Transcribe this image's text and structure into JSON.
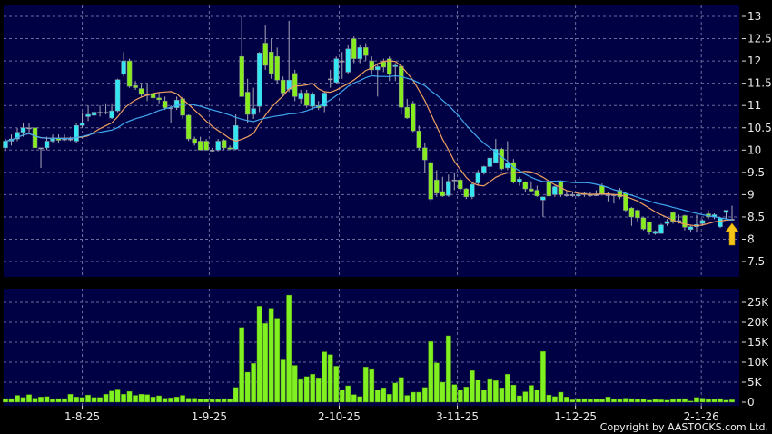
{
  "chart_data": [
    {
      "type": "candlestick",
      "panel": "price",
      "ylim": [
        7.2,
        13.25
      ],
      "y_ticks": [
        7.5,
        8,
        8.5,
        9,
        9.5,
        10,
        10.5,
        11,
        11.5,
        12,
        12.5,
        13
      ],
      "grid": true,
      "colors": {
        "up": "#33e6f2",
        "down": "#86ec1e",
        "wick": "#a8a8b8",
        "ma_short": "#f0a060",
        "ma_long": "#40a8f0",
        "background": "#000044",
        "grid": "#6c6c9c"
      },
      "moving_averages": [
        {
          "period": 10,
          "color": "#f0a060"
        },
        {
          "period": 20,
          "color": "#40a8f0"
        }
      ],
      "marker": {
        "icon": "up-arrow-icon",
        "candle_index": 123,
        "color": "#f5c518"
      },
      "candles": [
        [
          10.05,
          10.25,
          9.98,
          10.2
        ],
        [
          10.2,
          10.35,
          10.1,
          10.25
        ],
        [
          10.25,
          10.5,
          10.2,
          10.4
        ],
        [
          10.4,
          10.6,
          10.3,
          10.5
        ],
        [
          10.5,
          10.6,
          10.35,
          10.5
        ],
        [
          10.5,
          10.5,
          9.5,
          10.05
        ],
        [
          10.05,
          10.05,
          9.6,
          10.05
        ],
        [
          10.05,
          10.3,
          10.0,
          10.2
        ],
        [
          10.2,
          10.35,
          10.15,
          10.25
        ],
        [
          10.27,
          10.35,
          10.15,
          10.22
        ],
        [
          10.25,
          10.35,
          10.2,
          10.25
        ],
        [
          10.25,
          10.3,
          10.2,
          10.25
        ],
        [
          10.2,
          10.6,
          10.15,
          10.55
        ],
        [
          10.55,
          10.85,
          10.5,
          10.6
        ],
        [
          10.75,
          11.0,
          10.65,
          10.8
        ],
        [
          10.78,
          11.0,
          10.7,
          10.85
        ],
        [
          10.85,
          11.0,
          10.75,
          10.85
        ],
        [
          10.85,
          11.05,
          10.8,
          10.85
        ],
        [
          10.72,
          11.05,
          10.7,
          10.88
        ],
        [
          10.88,
          11.6,
          10.85,
          11.58
        ],
        [
          11.7,
          12.2,
          11.65,
          12.0
        ],
        [
          12.0,
          12.05,
          11.4,
          11.43
        ],
        [
          11.45,
          11.55,
          11.35,
          11.4
        ],
        [
          11.38,
          11.5,
          11.2,
          11.25
        ],
        [
          11.25,
          11.5,
          11.1,
          11.25
        ],
        [
          11.27,
          11.5,
          11.0,
          11.17
        ],
        [
          11.17,
          11.3,
          11.05,
          11.13
        ],
        [
          11.1,
          11.2,
          10.9,
          10.95
        ],
        [
          10.95,
          11.0,
          10.6,
          10.95
        ],
        [
          10.95,
          11.2,
          10.9,
          11.12
        ],
        [
          11.15,
          11.2,
          10.7,
          10.78
        ],
        [
          10.78,
          10.8,
          10.2,
          10.25
        ],
        [
          10.25,
          10.3,
          10.1,
          10.15
        ],
        [
          10.2,
          10.3,
          10.0,
          10.0
        ],
        [
          10.2,
          10.25,
          10.0,
          10.0
        ],
        [
          10.0,
          10.05,
          9.97,
          10.0
        ],
        [
          10.0,
          10.25,
          9.97,
          10.2
        ],
        [
          10.22,
          10.25,
          10.0,
          10.05
        ],
        [
          10.05,
          10.1,
          10.0,
          10.02
        ],
        [
          10.02,
          10.8,
          10.0,
          10.55
        ],
        [
          12.1,
          13.0,
          11.2,
          11.2
        ],
        [
          11.3,
          11.6,
          10.6,
          10.8
        ],
        [
          10.8,
          11.4,
          10.7,
          10.93
        ],
        [
          10.98,
          12.2,
          10.85,
          12.18
        ],
        [
          12.4,
          12.8,
          11.8,
          11.9
        ],
        [
          12.2,
          12.5,
          11.6,
          11.72
        ],
        [
          12.1,
          12.3,
          11.5,
          11.57
        ],
        [
          11.57,
          11.65,
          11.2,
          11.28
        ],
        [
          11.36,
          12.9,
          11.3,
          11.57
        ],
        [
          11.72,
          11.8,
          11.1,
          11.2
        ],
        [
          11.15,
          11.35,
          11.05,
          11.28
        ],
        [
          11.28,
          11.35,
          10.95,
          11.0
        ],
        [
          10.98,
          11.3,
          10.9,
          11.25
        ],
        [
          11.0,
          11.1,
          10.9,
          10.95
        ],
        [
          10.98,
          11.3,
          10.85,
          11.28
        ],
        [
          11.6,
          11.8,
          11.4,
          11.6
        ],
        [
          11.52,
          12.1,
          11.5,
          12.05
        ],
        [
          12.0,
          12.2,
          11.6,
          12.0
        ],
        [
          11.75,
          12.35,
          11.7,
          12.27
        ],
        [
          12.5,
          12.55,
          11.95,
          12.05
        ],
        [
          12.05,
          12.35,
          11.95,
          12.3
        ],
        [
          12.3,
          12.4,
          12.0,
          12.12
        ],
        [
          12.0,
          12.1,
          11.7,
          11.8
        ],
        [
          11.8,
          11.95,
          11.2,
          11.87
        ],
        [
          11.98,
          12.05,
          11.75,
          11.86
        ],
        [
          12.05,
          12.1,
          11.55,
          11.7
        ],
        [
          11.87,
          11.95,
          11.55,
          11.9
        ],
        [
          11.88,
          11.9,
          10.8,
          10.96
        ],
        [
          10.96,
          11.15,
          10.7,
          10.72
        ],
        [
          11.05,
          11.1,
          10.4,
          10.43
        ],
        [
          10.43,
          10.55,
          10.0,
          10.05
        ],
        [
          10.05,
          10.15,
          9.5,
          9.78
        ],
        [
          9.72,
          9.75,
          8.85,
          8.9
        ],
        [
          9.33,
          9.55,
          8.95,
          9.03
        ],
        [
          9.07,
          9.4,
          8.95,
          8.97
        ],
        [
          8.98,
          9.45,
          8.95,
          9.3
        ],
        [
          9.33,
          9.5,
          9.1,
          9.33
        ],
        [
          9.33,
          9.38,
          9.05,
          9.13
        ],
        [
          9.13,
          9.15,
          8.9,
          8.95
        ],
        [
          8.95,
          9.25,
          8.9,
          9.23
        ],
        [
          9.26,
          9.55,
          9.2,
          9.5
        ],
        [
          9.5,
          9.65,
          9.45,
          9.63
        ],
        [
          9.63,
          9.85,
          9.55,
          9.82
        ],
        [
          9.72,
          10.25,
          9.7,
          10.02
        ],
        [
          10.02,
          10.05,
          9.55,
          9.58
        ],
        [
          9.6,
          10.2,
          9.55,
          9.7
        ],
        [
          9.72,
          9.8,
          9.25,
          9.28
        ],
        [
          9.28,
          9.4,
          9.2,
          9.35
        ],
        [
          9.28,
          9.3,
          9.05,
          9.13
        ],
        [
          9.13,
          9.3,
          9.05,
          9.08
        ],
        [
          9.1,
          9.2,
          8.95,
          8.97
        ],
        [
          8.88,
          8.95,
          8.5,
          8.95
        ],
        [
          9.28,
          9.3,
          8.95,
          8.97
        ],
        [
          9.0,
          9.2,
          8.95,
          9.18
        ],
        [
          9.3,
          9.32,
          8.95,
          9.0
        ],
        [
          9.0,
          9.1,
          8.95,
          9.0
        ],
        [
          9.0,
          9.05,
          8.95,
          9.0
        ],
        [
          8.97,
          9.02,
          8.95,
          9.0
        ],
        [
          9.03,
          9.05,
          8.95,
          9.0
        ],
        [
          9.0,
          9.05,
          8.95,
          9.0
        ],
        [
          9.0,
          9.1,
          8.97,
          9.0
        ],
        [
          9.2,
          9.25,
          8.98,
          9.0
        ],
        [
          9.0,
          9.05,
          8.85,
          9.0
        ],
        [
          9.0,
          9.02,
          8.8,
          9.0
        ],
        [
          9.1,
          9.15,
          8.9,
          8.95
        ],
        [
          9.03,
          9.05,
          8.6,
          8.65
        ],
        [
          8.7,
          8.72,
          8.3,
          8.5
        ],
        [
          8.65,
          8.67,
          8.4,
          8.48
        ],
        [
          8.48,
          8.5,
          8.2,
          8.23
        ],
        [
          8.38,
          8.4,
          8.1,
          8.17
        ],
        [
          8.13,
          8.2,
          8.1,
          8.18
        ],
        [
          8.13,
          8.35,
          8.12,
          8.32
        ],
        [
          8.35,
          8.45,
          8.3,
          8.4
        ],
        [
          8.6,
          8.62,
          8.35,
          8.4
        ],
        [
          8.42,
          8.55,
          8.35,
          8.42
        ],
        [
          8.53,
          8.55,
          8.2,
          8.27
        ],
        [
          8.22,
          8.3,
          8.15,
          8.28
        ],
        [
          8.28,
          8.55,
          8.15,
          8.33
        ],
        [
          8.35,
          8.45,
          8.3,
          8.42
        ],
        [
          8.57,
          8.65,
          8.45,
          8.5
        ],
        [
          8.5,
          8.58,
          8.45,
          8.55
        ],
        [
          8.28,
          8.5,
          8.25,
          8.48
        ],
        [
          8.6,
          8.65,
          8.45,
          8.65
        ],
        [
          8.45,
          8.75,
          8.42,
          8.45
        ]
      ]
    },
    {
      "type": "bar",
      "panel": "volume",
      "ylim": [
        0,
        27500
      ],
      "y_ticks": [
        {
          "value": 0,
          "label": "0"
        },
        {
          "value": 5000,
          "label": "5K"
        },
        {
          "value": 10000,
          "label": "10K"
        },
        {
          "value": 15000,
          "label": "15K"
        },
        {
          "value": 20000,
          "label": "20K"
        },
        {
          "value": 25000,
          "label": "25K"
        }
      ],
      "grid": true,
      "bar_color": "#80f020",
      "values": [
        900,
        900,
        1700,
        1200,
        1900,
        1000,
        1300,
        1400,
        700,
        900,
        900,
        2000,
        1300,
        1200,
        1800,
        1200,
        1200,
        2000,
        2800,
        3300,
        2000,
        2700,
        1700,
        2000,
        1900,
        1300,
        1600,
        1000,
        1100,
        1300,
        1700,
        1000,
        1000,
        800,
        800,
        700,
        700,
        900,
        800,
        3700,
        18700,
        7500,
        9700,
        24000,
        19700,
        23500,
        21000,
        10800,
        26800,
        9200,
        5900,
        6400,
        7000,
        6100,
        12600,
        11900,
        9000,
        3000,
        4100,
        1900,
        1400,
        8800,
        8400,
        3000,
        3600,
        2000,
        4800,
        6200,
        1700,
        2500,
        2500,
        3700,
        15200,
        9800,
        5000,
        16600,
        4400,
        3100,
        3800,
        7900,
        5500,
        3100,
        5900,
        5400,
        3600,
        7000,
        4300,
        1600,
        2600,
        4200,
        3100,
        12700,
        1800,
        1400,
        2500,
        1300,
        600,
        900,
        900,
        700,
        800,
        700,
        1300,
        800,
        700,
        1000,
        900,
        700,
        800,
        500,
        700,
        600,
        500,
        700,
        900,
        900,
        300,
        1200,
        1000,
        700,
        700,
        900,
        500,
        600
      ]
    }
  ],
  "x_ticks": [
    {
      "label": "1-8-25",
      "candle_index": 13
    },
    {
      "label": "1-9-25",
      "candle_index": 34.5
    },
    {
      "label": "2-10-25",
      "candle_index": 56.5
    },
    {
      "label": "3-11-25",
      "candle_index": 76.5
    },
    {
      "label": "1-12-25",
      "candle_index": 96.5
    },
    {
      "label": "2-1-26",
      "candle_index": 117.8
    }
  ],
  "copyright": "Copyright by AASTOCKS.com Ltd."
}
